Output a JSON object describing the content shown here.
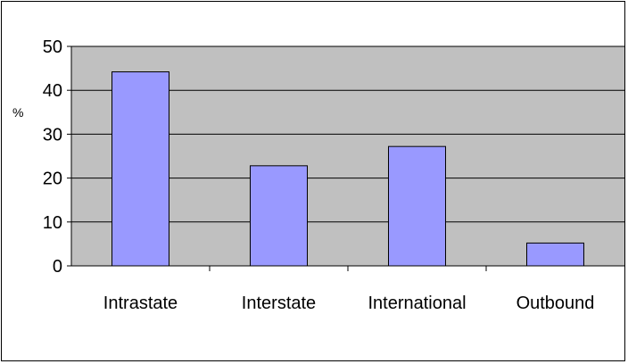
{
  "chart_data": {
    "type": "bar",
    "categories": [
      "Intrastate",
      "Interstate",
      "International",
      "Outbound"
    ],
    "values": [
      44.2,
      22.8,
      27.2,
      5.2
    ],
    "ylabel": "%",
    "ylim": [
      0,
      50
    ],
    "yticks": [
      0,
      10,
      20,
      30,
      40,
      50
    ],
    "grid": true,
    "legend": "none",
    "colors": {
      "bar_fill": "#9999ff",
      "bar_stroke": "#000000",
      "plot_background": "#c0c0c0",
      "gridline": "#000000"
    }
  }
}
